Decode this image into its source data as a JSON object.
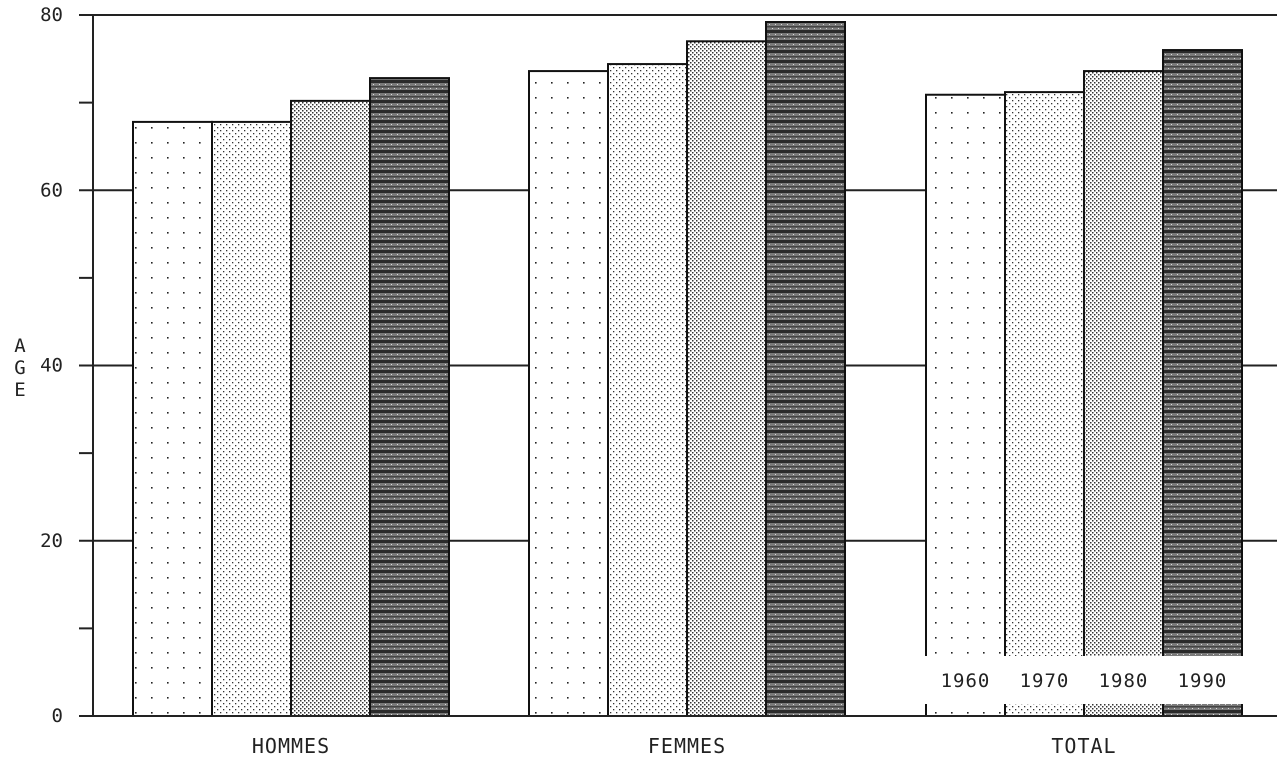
{
  "chart_data": {
    "type": "bar",
    "title": "",
    "xlabel": "",
    "ylabel": "AGE",
    "ylim": [
      0,
      80
    ],
    "yticks": [
      "0",
      "20",
      "40",
      "60",
      "80"
    ],
    "grid": true,
    "legend_placement": "bottom-right",
    "categories": [
      "HOMMES",
      "FEMMES",
      "TOTAL"
    ],
    "series": [
      {
        "name": "1960",
        "values": [
          67.8,
          73.6,
          70.9
        ],
        "pattern": "sparse-dots"
      },
      {
        "name": "1970",
        "values": [
          67.8,
          74.4,
          71.2
        ],
        "pattern": "fine-dots"
      },
      {
        "name": "1980",
        "values": [
          70.2,
          77.0,
          73.6
        ],
        "pattern": "dense-dots"
      },
      {
        "name": "1990",
        "values": [
          72.8,
          79.2,
          76.0
        ],
        "pattern": "dark-stripes"
      }
    ]
  }
}
